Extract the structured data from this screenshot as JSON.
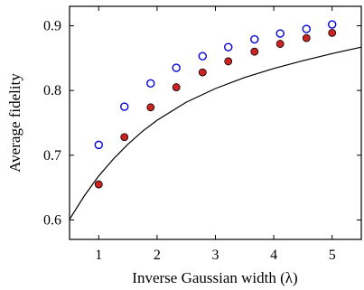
{
  "chart_data": {
    "type": "scatter",
    "title": "",
    "xlabel": "Inverse Gaussian width (λ)",
    "ylabel": "Average fidelity",
    "xlim": [
      0.5,
      5.5
    ],
    "ylim": [
      0.57,
      0.93
    ],
    "xticks": [
      1,
      2,
      3,
      4,
      5
    ],
    "yticks": [
      0.6,
      0.7,
      0.8,
      0.9
    ],
    "xtick_labels": [
      "1",
      "2",
      "3",
      "4",
      "5"
    ],
    "ytick_labels": [
      "0.6",
      "0.7",
      "0.8",
      "0.9"
    ],
    "grid": false,
    "legend": "none",
    "series": [
      {
        "marker": "open-circle",
        "color": "#0000dd",
        "x": [
          1.0,
          1.44,
          1.89,
          2.33,
          2.78,
          3.22,
          3.67,
          4.11,
          4.56,
          5.0
        ],
        "y": [
          0.716,
          0.775,
          0.811,
          0.835,
          0.853,
          0.867,
          0.879,
          0.888,
          0.895,
          0.902
        ]
      },
      {
        "marker": "filled-circle",
        "color": "#cc2222",
        "x": [
          1.0,
          1.44,
          1.89,
          2.33,
          2.78,
          3.22,
          3.67,
          4.11,
          4.56,
          5.0
        ],
        "y": [
          0.655,
          0.728,
          0.774,
          0.805,
          0.828,
          0.845,
          0.86,
          0.872,
          0.881,
          0.889
        ]
      },
      {
        "marker": "line",
        "color": "#000000",
        "x": [
          0.5,
          0.75,
          1.0,
          1.25,
          1.5,
          1.75,
          2.0,
          2.5,
          3.0,
          3.5,
          4.0,
          4.5,
          5.0,
          5.5
        ],
        "y": [
          0.601,
          0.637,
          0.668,
          0.694,
          0.717,
          0.737,
          0.754,
          0.782,
          0.803,
          0.82,
          0.834,
          0.846,
          0.857,
          0.867
        ]
      }
    ]
  }
}
